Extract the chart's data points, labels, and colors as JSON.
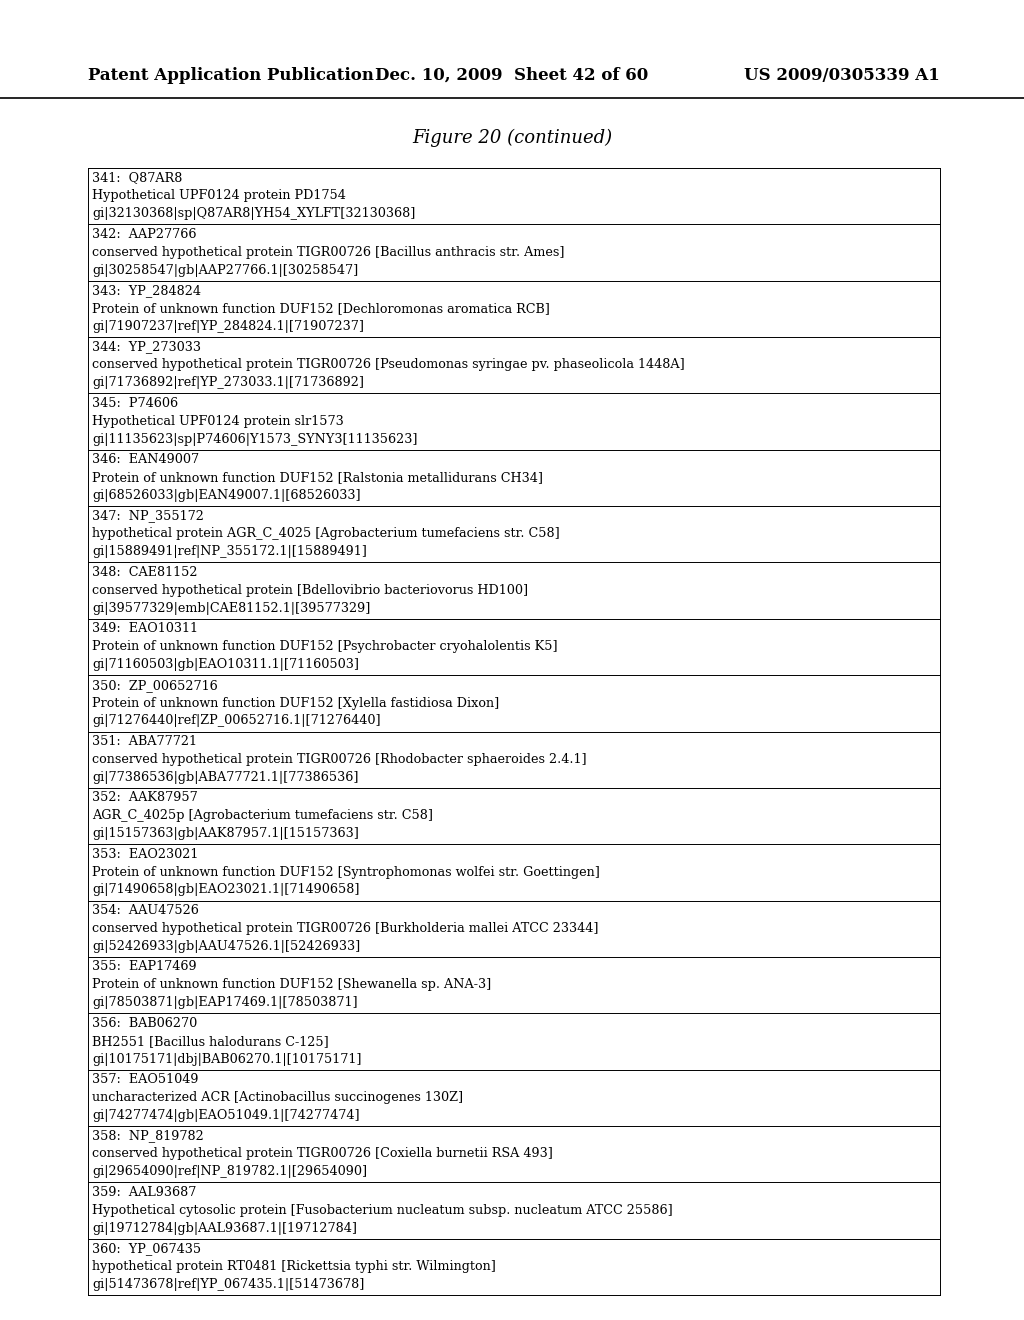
{
  "header_left": "Patent Application Publication",
  "header_center": "Dec. 10, 2009  Sheet 42 of 60",
  "header_right": "US 2009/0305339 A1",
  "figure_title": "Figure 20 (continued)",
  "entries": [
    {
      "line1": "341:  Q87AR8",
      "line2": "Hypothetical UPF0124 protein PD1754",
      "line3": "gi|32130368|sp|Q87AR8|YH54_XYLFT[32130368]"
    },
    {
      "line1": "342:  AAP27766",
      "line2": "conserved hypothetical protein TIGR00726 [Bacillus anthracis str. Ames]",
      "line3": "gi|30258547|gb|AAP27766.1|[30258547]"
    },
    {
      "line1": "343:  YP_284824",
      "line2": "Protein of unknown function DUF152 [Dechloromonas aromatica RCB]",
      "line3": "gi|71907237|ref|YP_284824.1|[71907237]"
    },
    {
      "line1": "344:  YP_273033",
      "line2": "conserved hypothetical protein TIGR00726 [Pseudomonas syringae pv. phaseolicola 1448A]",
      "line3": "gi|71736892|ref|YP_273033.1|[71736892]"
    },
    {
      "line1": "345:  P74606",
      "line2": "Hypothetical UPF0124 protein slr1573",
      "line3": "gi|11135623|sp|P74606|Y1573_SYNY3[11135623]"
    },
    {
      "line1": "346:  EAN49007",
      "line2": "Protein of unknown function DUF152 [Ralstonia metallidurans CH34]",
      "line3": "gi|68526033|gb|EAN49007.1|[68526033]"
    },
    {
      "line1": "347:  NP_355172",
      "line2": "hypothetical protein AGR_C_4025 [Agrobacterium tumefaciens str. C58]",
      "line3": "gi|15889491|ref|NP_355172.1|[15889491]"
    },
    {
      "line1": "348:  CAE81152",
      "line2": "conserved hypothetical protein [Bdellovibrio bacteriovorus HD100]",
      "line3": "gi|39577329|emb|CAE81152.1|[39577329]"
    },
    {
      "line1": "349:  EAO10311",
      "line2": "Protein of unknown function DUF152 [Psychrobacter cryohalolentis K5]",
      "line3": "gi|71160503|gb|EAO10311.1|[71160503]"
    },
    {
      "line1": "350:  ZP_00652716",
      "line2": "Protein of unknown function DUF152 [Xylella fastidiosa Dixon]",
      "line3": "gi|71276440|ref|ZP_00652716.1|[71276440]"
    },
    {
      "line1": "351:  ABA77721",
      "line2": "conserved hypothetical protein TIGR00726 [Rhodobacter sphaeroides 2.4.1]",
      "line3": "gi|77386536|gb|ABA77721.1|[77386536]"
    },
    {
      "line1": "352:  AAK87957",
      "line2": "AGR_C_4025p [Agrobacterium tumefaciens str. C58]",
      "line3": "gi|15157363|gb|AAK87957.1|[15157363]"
    },
    {
      "line1": "353:  EAO23021",
      "line2": "Protein of unknown function DUF152 [Syntrophomonas wolfei str. Goettingen]",
      "line3": "gi|71490658|gb|EAO23021.1|[71490658]"
    },
    {
      "line1": "354:  AAU47526",
      "line2": "conserved hypothetical protein TIGR00726 [Burkholderia mallei ATCC 23344]",
      "line3": "gi|52426933|gb|AAU47526.1|[52426933]"
    },
    {
      "line1": "355:  EAP17469",
      "line2": "Protein of unknown function DUF152 [Shewanella sp. ANA-3]",
      "line3": "gi|78503871|gb|EAP17469.1|[78503871]"
    },
    {
      "line1": "356:  BAB06270",
      "line2": "BH2551 [Bacillus halodurans C-125]",
      "line3": "gi|10175171|dbj|BAB06270.1|[10175171]"
    },
    {
      "line1": "357:  EAO51049",
      "line2": "uncharacterized ACR [Actinobacillus succinogenes 130Z]",
      "line3": "gi|74277474|gb|EAO51049.1|[74277474]"
    },
    {
      "line1": "358:  NP_819782",
      "line2": "conserved hypothetical protein TIGR00726 [Coxiella burnetii RSA 493]",
      "line3": "gi|29654090|ref|NP_819782.1|[29654090]"
    },
    {
      "line1": "359:  AAL93687",
      "line2": "Hypothetical cytosolic protein [Fusobacterium nucleatum subsp. nucleatum ATCC 25586]",
      "line3": "gi|19712784|gb|AAL93687.1|[19712784]"
    },
    {
      "line1": "360:  YP_067435",
      "line2": "hypothetical protein RT0481 [Rickettsia typhi str. Wilmington]",
      "line3": "gi|51473678|ref|YP_067435.1|[51473678]"
    }
  ],
  "bg_color": "#ffffff",
  "text_color": "#000000",
  "font_size_header": 12,
  "font_size_title": 13,
  "font_size_entry": 9.2
}
